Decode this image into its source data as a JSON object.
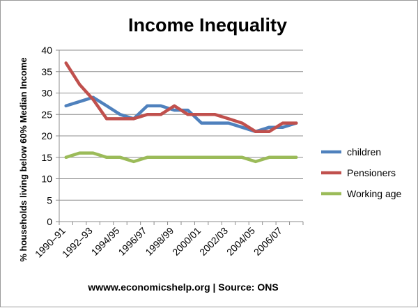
{
  "chart_data": {
    "type": "line",
    "title": "Income Inequality",
    "ylabel": "% households living below 60% Median Income",
    "xlabel": "",
    "source": "wwww.economicshelp.org | Source: ONS",
    "ylim": [
      0,
      40
    ],
    "y_ticks": [
      0,
      5,
      10,
      15,
      20,
      25,
      30,
      35,
      40
    ],
    "grid": true,
    "legend_position": "right",
    "x_points": [
      "1990–91",
      "",
      "1992–93",
      "",
      "1994/95",
      "",
      "1996/97",
      "",
      "1998/99",
      "",
      "2000/01",
      "",
      "2002/03",
      "",
      "2004/05",
      "",
      "2006/07",
      ""
    ],
    "x_tick_labels": [
      "1990–91",
      "1992–93",
      "1994/95",
      "1996/97",
      "1998/99",
      "2000/01",
      "2002/03",
      "2004/05",
      "2006/07"
    ],
    "series": [
      {
        "name": "children",
        "color": "#4f81bd",
        "values": [
          27,
          28,
          29,
          27,
          25,
          24,
          27,
          27,
          26,
          26,
          23,
          23,
          23,
          22,
          21,
          22,
          22,
          23
        ]
      },
      {
        "name": "Pensioners",
        "color": "#c0504d",
        "values": [
          37,
          32,
          28.5,
          24,
          24,
          24,
          25,
          25,
          27,
          25,
          25,
          25,
          24,
          23,
          21,
          21,
          23,
          23
        ]
      },
      {
        "name": "Working age",
        "color": "#9bbb59",
        "values": [
          15,
          16,
          16,
          15,
          15,
          14,
          15,
          15,
          15,
          15,
          15,
          15,
          15,
          15,
          14,
          15,
          15,
          15
        ]
      }
    ]
  }
}
